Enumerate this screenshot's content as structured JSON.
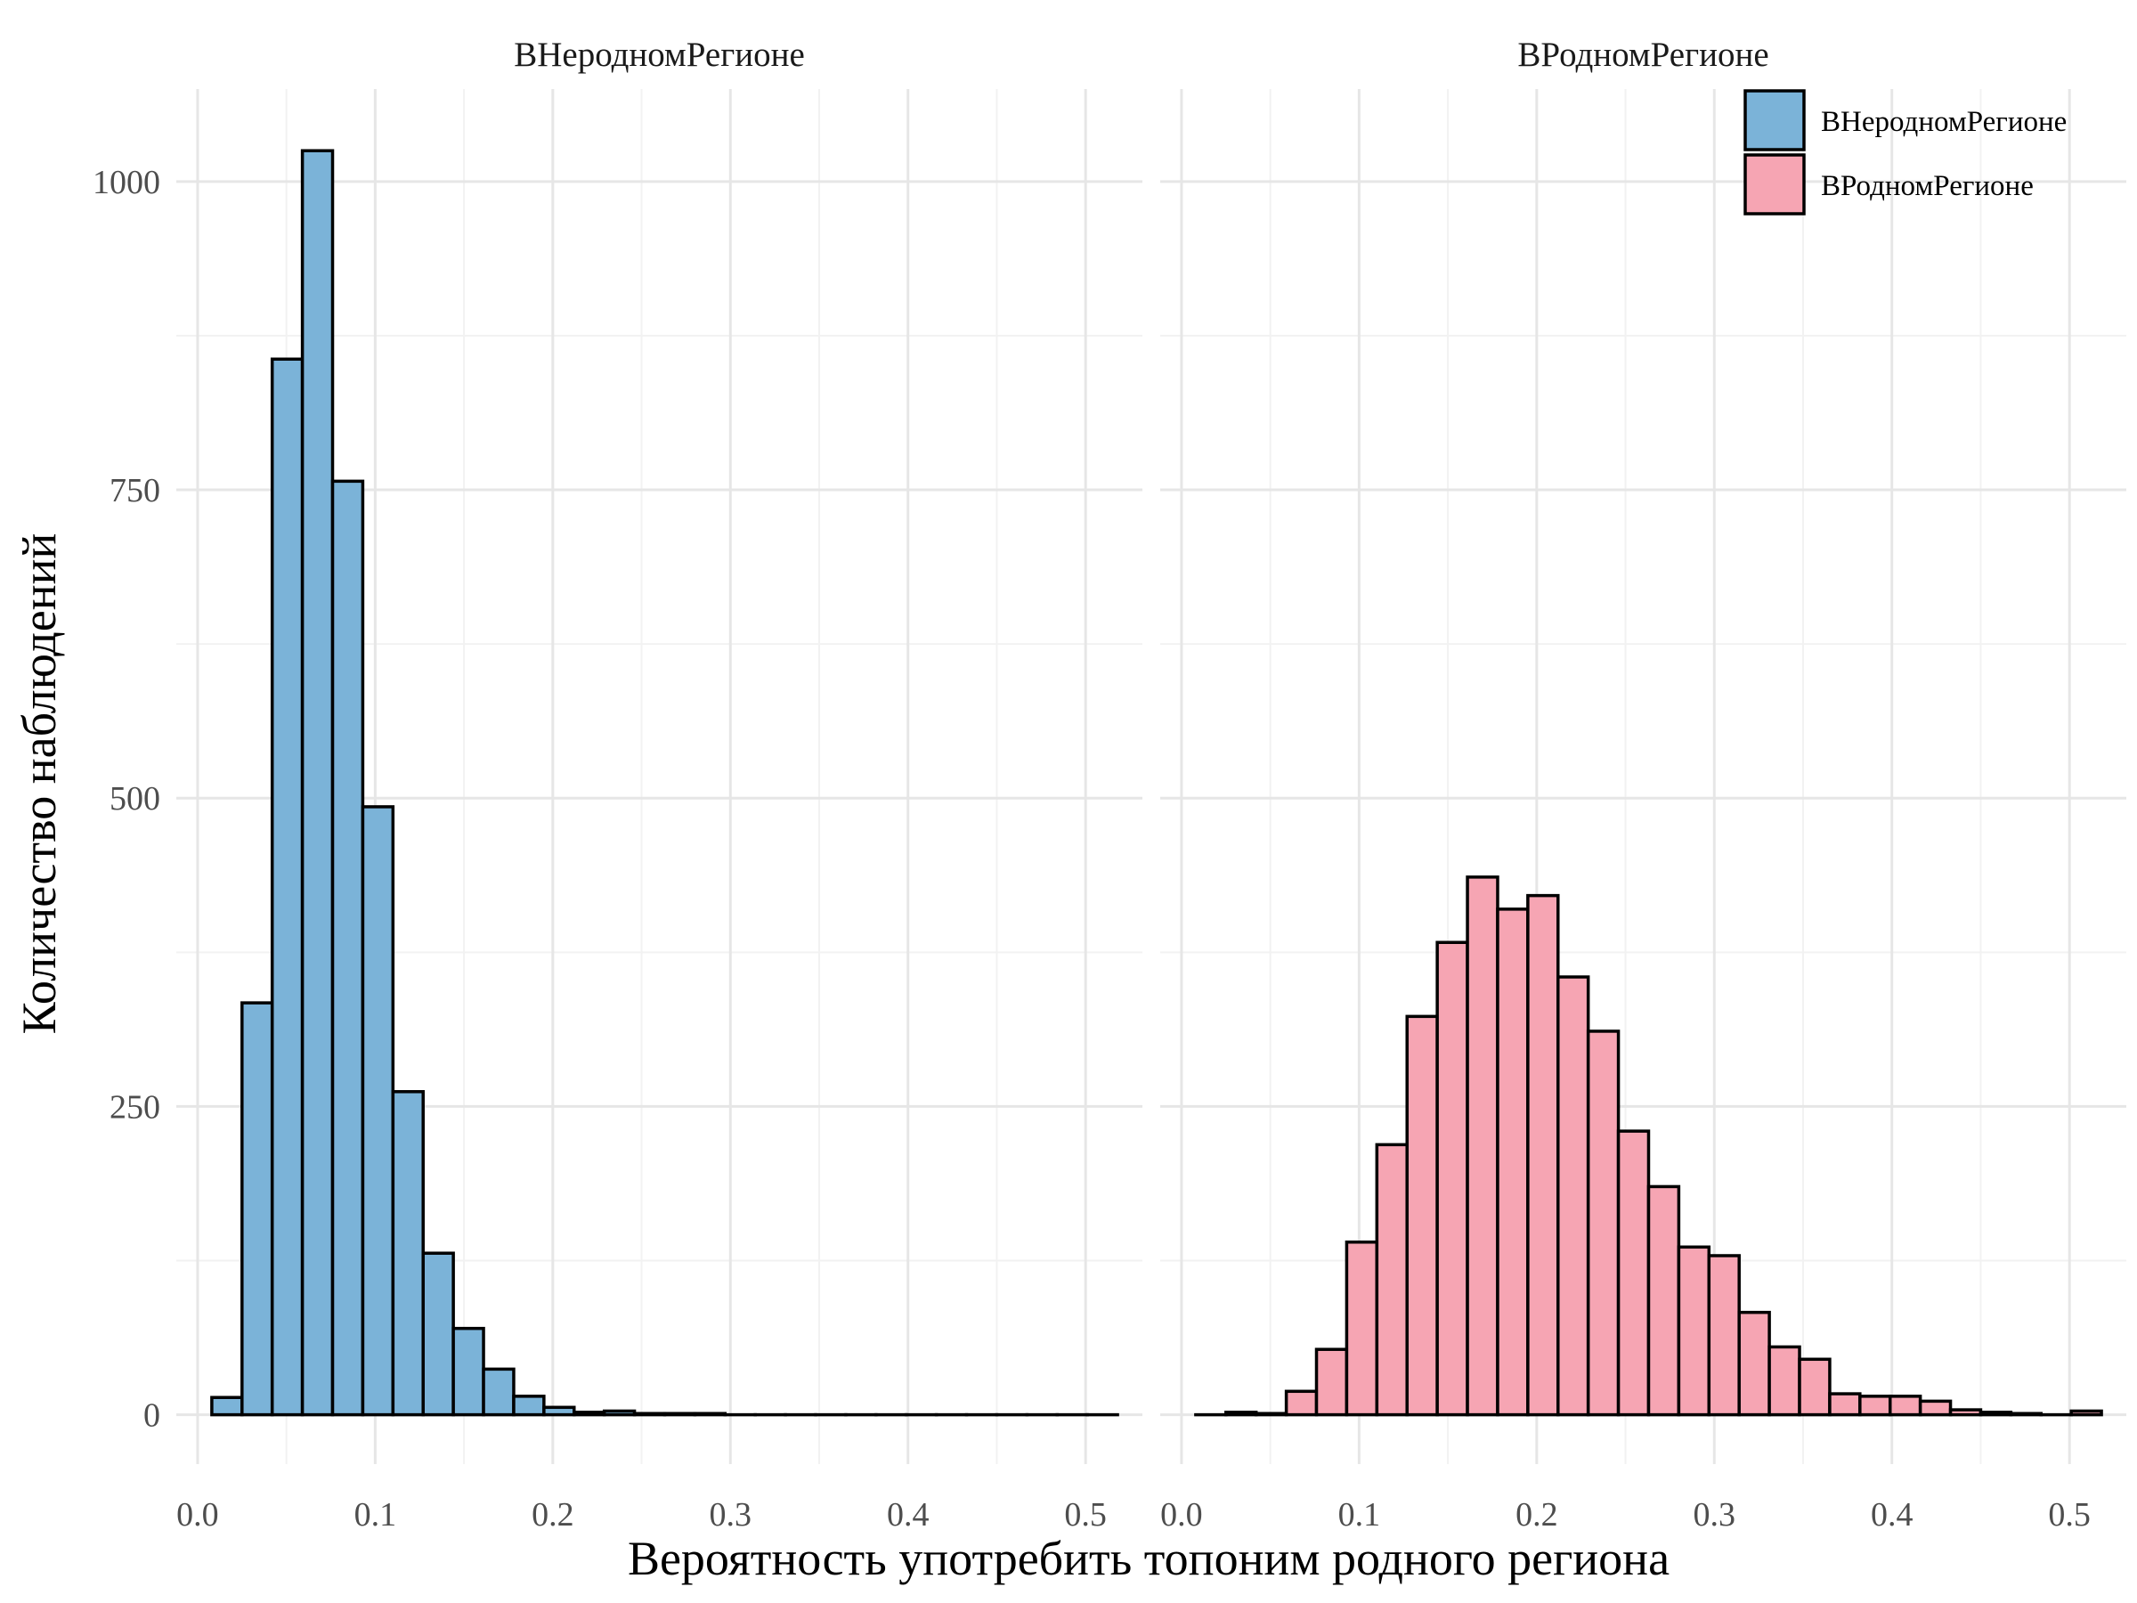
{
  "chart_data": {
    "type": "bar",
    "x_label": "Вероятность употребить топоним родного региона",
    "y_label": "Количество наблюдений",
    "xlim": [
      -0.012,
      0.532
    ],
    "ylim": [
      -40,
      1075
    ],
    "x_ticks": [
      0.0,
      0.1,
      0.2,
      0.3,
      0.4,
      0.5
    ],
    "x_tick_labels": [
      "0.0",
      "0.1",
      "0.2",
      "0.3",
      "0.4",
      "0.5"
    ],
    "y_ticks": [
      0,
      250,
      500,
      750,
      1000
    ],
    "y_tick_labels": [
      "0",
      "250",
      "500",
      "750",
      "1000"
    ],
    "grid": true,
    "legend_position": "top-right",
    "panels": [
      {
        "strip": "ВНеродномРегионе",
        "series": "ВНеродномРегионе",
        "color": "#7BB3D8",
        "bin_width": 0.017,
        "bins_start": 0.008,
        "counts": [
          14,
          334,
          856,
          1025,
          757,
          493,
          262,
          131,
          70,
          37,
          15,
          6,
          2,
          3,
          1,
          1,
          1,
          0,
          0,
          0,
          0,
          0,
          0,
          0,
          0,
          0,
          0,
          0,
          0,
          0
        ]
      },
      {
        "strip": "ВРодномРегионе",
        "series": "ВРодномРегионе",
        "color": "#F6A5B3",
        "bin_width": 0.017,
        "bins_start": 0.008,
        "counts": [
          0,
          2,
          1,
          19,
          53,
          140,
          219,
          323,
          383,
          436,
          410,
          421,
          355,
          311,
          230,
          185,
          136,
          129,
          83,
          55,
          45,
          17,
          15,
          15,
          11,
          4,
          2,
          1,
          0,
          3
        ]
      }
    ],
    "legend": [
      "ВНеродномРегионе",
      "ВРодномРегионе"
    ]
  }
}
